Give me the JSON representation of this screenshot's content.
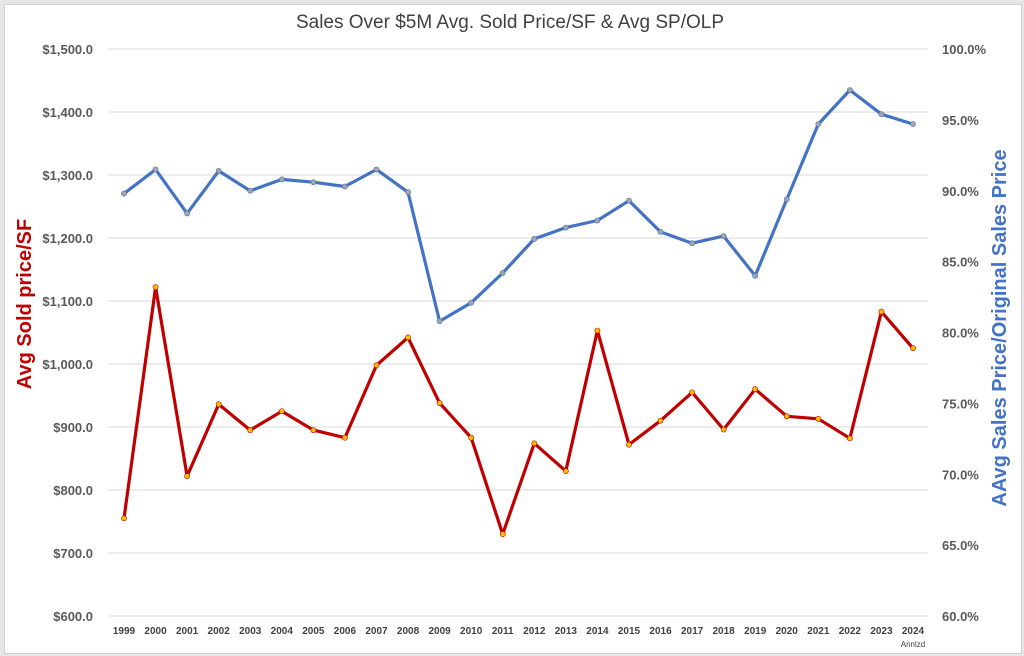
{
  "chart_data": {
    "type": "line",
    "title": "Sales  Over $5M Avg. Sold Price/SF  &  Avg SP/OLP",
    "categories": [
      "1999",
      "2000",
      "2001",
      "2002",
      "2003",
      "2004",
      "2005",
      "2006",
      "2007",
      "2008",
      "2009",
      "2010",
      "2011",
      "2012",
      "2013",
      "2014",
      "2015",
      "2016",
      "2017",
      "2018",
      "2019",
      "2020",
      "2021",
      "2022",
      "2023",
      "2024"
    ],
    "category_subtitle": {
      "index": 25,
      "text": "Annlzd"
    },
    "left_axis": {
      "label": "Avg Sold price/SF",
      "min": 600,
      "max": 1500,
      "step": 100,
      "tick_labels": [
        "$600.0",
        "$700.0",
        "$800.0",
        "$900.0",
        "$1,000.0",
        "$1,100.0",
        "$1,200.0",
        "$1,300.0",
        "$1,400.0",
        "$1,500.0"
      ]
    },
    "right_axis": {
      "label": "AAvg Sales Price/Original Sales Price",
      "min": 60,
      "max": 100,
      "step": 5,
      "tick_labels": [
        "60.0%",
        "65.0%",
        "70.0%",
        "75.0%",
        "80.0%",
        "85.0%",
        "90.0%",
        "95.0%",
        "100.0%"
      ]
    },
    "grid": true,
    "series": [
      {
        "axis": "left",
        "color": "#c00000",
        "marker_color": "#ffc000",
        "values": [
          755,
          1122,
          822,
          936,
          895,
          925,
          895,
          883,
          998,
          1042,
          938,
          883,
          730,
          874,
          830,
          1053,
          872,
          910,
          955,
          896,
          960,
          917,
          913,
          882,
          1083,
          1025
        ]
      },
      {
        "axis": "right",
        "color": "#4472c4",
        "marker_color": "#a5a5a5",
        "values": [
          89.8,
          91.5,
          88.4,
          91.4,
          90.0,
          90.8,
          90.6,
          90.3,
          91.5,
          89.9,
          80.8,
          82.1,
          84.2,
          86.6,
          87.4,
          87.9,
          89.3,
          87.1,
          86.3,
          86.8,
          84.0,
          89.4,
          94.7,
          97.1,
          95.4,
          94.7
        ]
      }
    ]
  }
}
